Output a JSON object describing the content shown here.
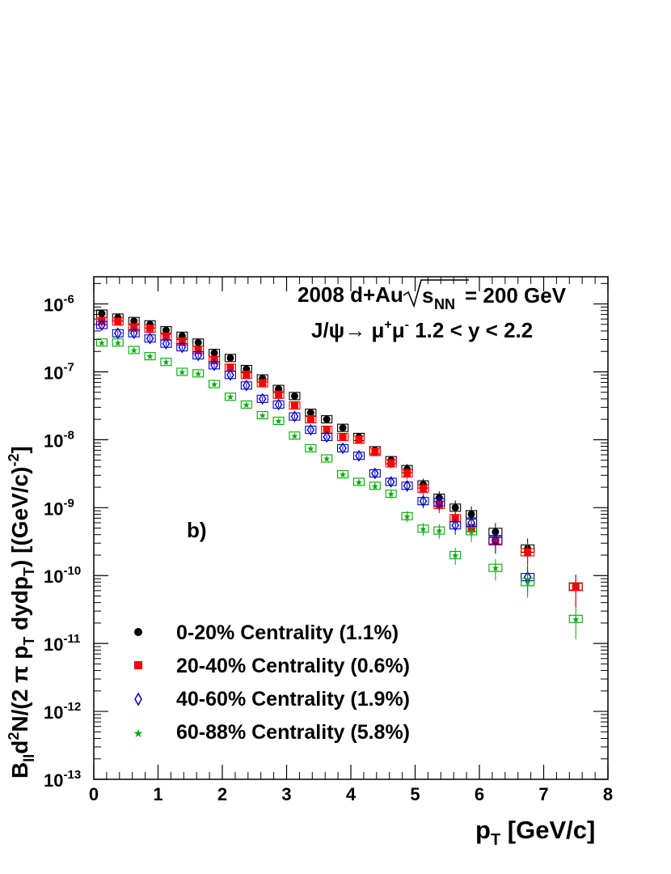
{
  "chart_data": {
    "type": "scatter",
    "log_y": true,
    "title_line1_prefix": "2008 d+Au",
    "title_line1_sqrt": "s",
    "title_line1_sub": "NN",
    "title_line1_suffix": " = 200 GeV",
    "title_line2_prefix": "J/ψ→ μ",
    "title_line2_sup1": "+",
    "title_line2_mid": "μ",
    "title_line2_sup2": "-",
    "title_line2_suffix": " 1.2 < y < 2.2",
    "panel_label": "b)",
    "xlabel_main": "p",
    "xlabel_sub": "T",
    "xlabel_rest": " [GeV/c]",
    "ylabel_text": "B_ll d²N/(2 π p_T dydp_T) [(GeV/c)^-2]",
    "ylabel_parts": {
      "B": "B",
      "ll": "ll",
      "d": "d",
      "two": "2",
      "N": "N/(2 π p",
      "T1": "T",
      "dyd": " dydp",
      "T2": "T",
      "unit": ") [(GeV/c)",
      "minus2": "-2",
      "close": "]"
    },
    "xlim": [
      0,
      8
    ],
    "ylim_log10": [
      -13,
      -5.6
    ],
    "x_ticks": [
      "0",
      "1",
      "2",
      "3",
      "4",
      "5",
      "6",
      "7",
      "8"
    ],
    "y_tick_base": "10",
    "y_tick_exponents": [
      "-6",
      "-7",
      "-8",
      "-9",
      "-10",
      "-11",
      "-12",
      "-13"
    ],
    "series": [
      {
        "name": "0-20% Centrality (1.1%)",
        "color": "#000000",
        "marker": "circle",
        "x": [
          0.125,
          0.375,
          0.625,
          0.875,
          1.125,
          1.375,
          1.625,
          1.875,
          2.125,
          2.375,
          2.625,
          2.875,
          3.125,
          3.375,
          3.625,
          3.875,
          4.125,
          4.375,
          4.625,
          4.875,
          5.125,
          5.375,
          5.625,
          5.875,
          6.25,
          6.75,
          7.5
        ],
        "y": [
          7.2e-07,
          6.3e-07,
          5.6e-07,
          5e-07,
          4.1e-07,
          3.4e-07,
          2.7e-07,
          1.9e-07,
          1.6e-07,
          1.1e-07,
          8e-08,
          5.6e-08,
          4.4e-08,
          2.5e-08,
          2e-08,
          1.5e-08,
          1.1e-08,
          7e-09,
          5e-09,
          3.7e-09,
          2.2e-09,
          1.4e-09,
          1e-09,
          8e-10,
          4.4e-10,
          2.5e-10,
          6.9e-11
        ]
      },
      {
        "name": "20-40% Centrality (0.6%)",
        "color": "#ff0000",
        "marker": "square",
        "x": [
          0.125,
          0.375,
          0.625,
          0.875,
          1.125,
          1.375,
          1.625,
          1.875,
          2.125,
          2.375,
          2.625,
          2.875,
          3.125,
          3.375,
          3.625,
          3.875,
          4.125,
          4.375,
          4.625,
          4.875,
          5.125,
          5.375,
          5.625,
          5.875,
          6.25,
          6.75,
          7.5
        ],
        "y": [
          5.6e-07,
          5.5e-07,
          4.5e-07,
          4.3e-07,
          3.3e-07,
          2.8e-07,
          2.1e-07,
          1.5e-07,
          1.15e-07,
          9e-08,
          6.8e-08,
          4.6e-08,
          3.2e-08,
          2e-08,
          1.4e-08,
          1.1e-08,
          1e-08,
          6.6e-09,
          4.5e-09,
          3.2e-09,
          1.9e-09,
          1.1e-09,
          7e-10,
          5e-10,
          3.2e-10,
          2.2e-10,
          6.8e-11
        ]
      },
      {
        "name": "40-60% Centrality (1.9%)",
        "color": "#0000cc",
        "marker": "diamond",
        "x": [
          0.125,
          0.375,
          0.625,
          0.875,
          1.125,
          1.375,
          1.625,
          1.875,
          2.125,
          2.375,
          2.625,
          2.875,
          3.125,
          3.375,
          3.625,
          3.875,
          4.125,
          4.375,
          4.625,
          4.875,
          5.125,
          5.375,
          5.625,
          5.875,
          6.25,
          6.75
        ],
        "y": [
          4.9e-07,
          3.7e-07,
          3.7e-07,
          3.1e-07,
          2.6e-07,
          2.3e-07,
          1.75e-07,
          1.25e-07,
          9e-08,
          6.3e-08,
          4e-08,
          3.3e-08,
          2.2e-08,
          1.4e-08,
          1.1e-08,
          7.5e-09,
          5.8e-09,
          3.2e-09,
          2.4e-09,
          2.1e-09,
          1.25e-09,
          1.2e-09,
          5.5e-10,
          6e-10,
          3.3e-10,
          9.5e-11
        ]
      },
      {
        "name": "60-88% Centrality (5.8%)",
        "color": "#00aa00",
        "marker": "star",
        "x": [
          0.125,
          0.375,
          0.625,
          0.875,
          1.125,
          1.375,
          1.625,
          1.875,
          2.125,
          2.375,
          2.625,
          2.875,
          3.125,
          3.375,
          3.625,
          3.875,
          4.125,
          4.375,
          4.625,
          4.875,
          5.125,
          5.375,
          5.625,
          5.875,
          6.25,
          6.75,
          7.5
        ],
        "y": [
          2.7e-07,
          2.7e-07,
          2.1e-07,
          1.7e-07,
          1.4e-07,
          1e-07,
          9.5e-08,
          6.6e-08,
          4.3e-08,
          3.3e-08,
          2.3e-08,
          1.9e-08,
          1.15e-08,
          7.5e-09,
          5.3e-09,
          3.1e-09,
          2.4e-09,
          2.1e-09,
          1.6e-09,
          7.5e-10,
          4.9e-10,
          4.6e-10,
          2e-10,
          4.5e-10,
          1.3e-10,
          8e-11,
          2.3e-11
        ]
      }
    ]
  }
}
